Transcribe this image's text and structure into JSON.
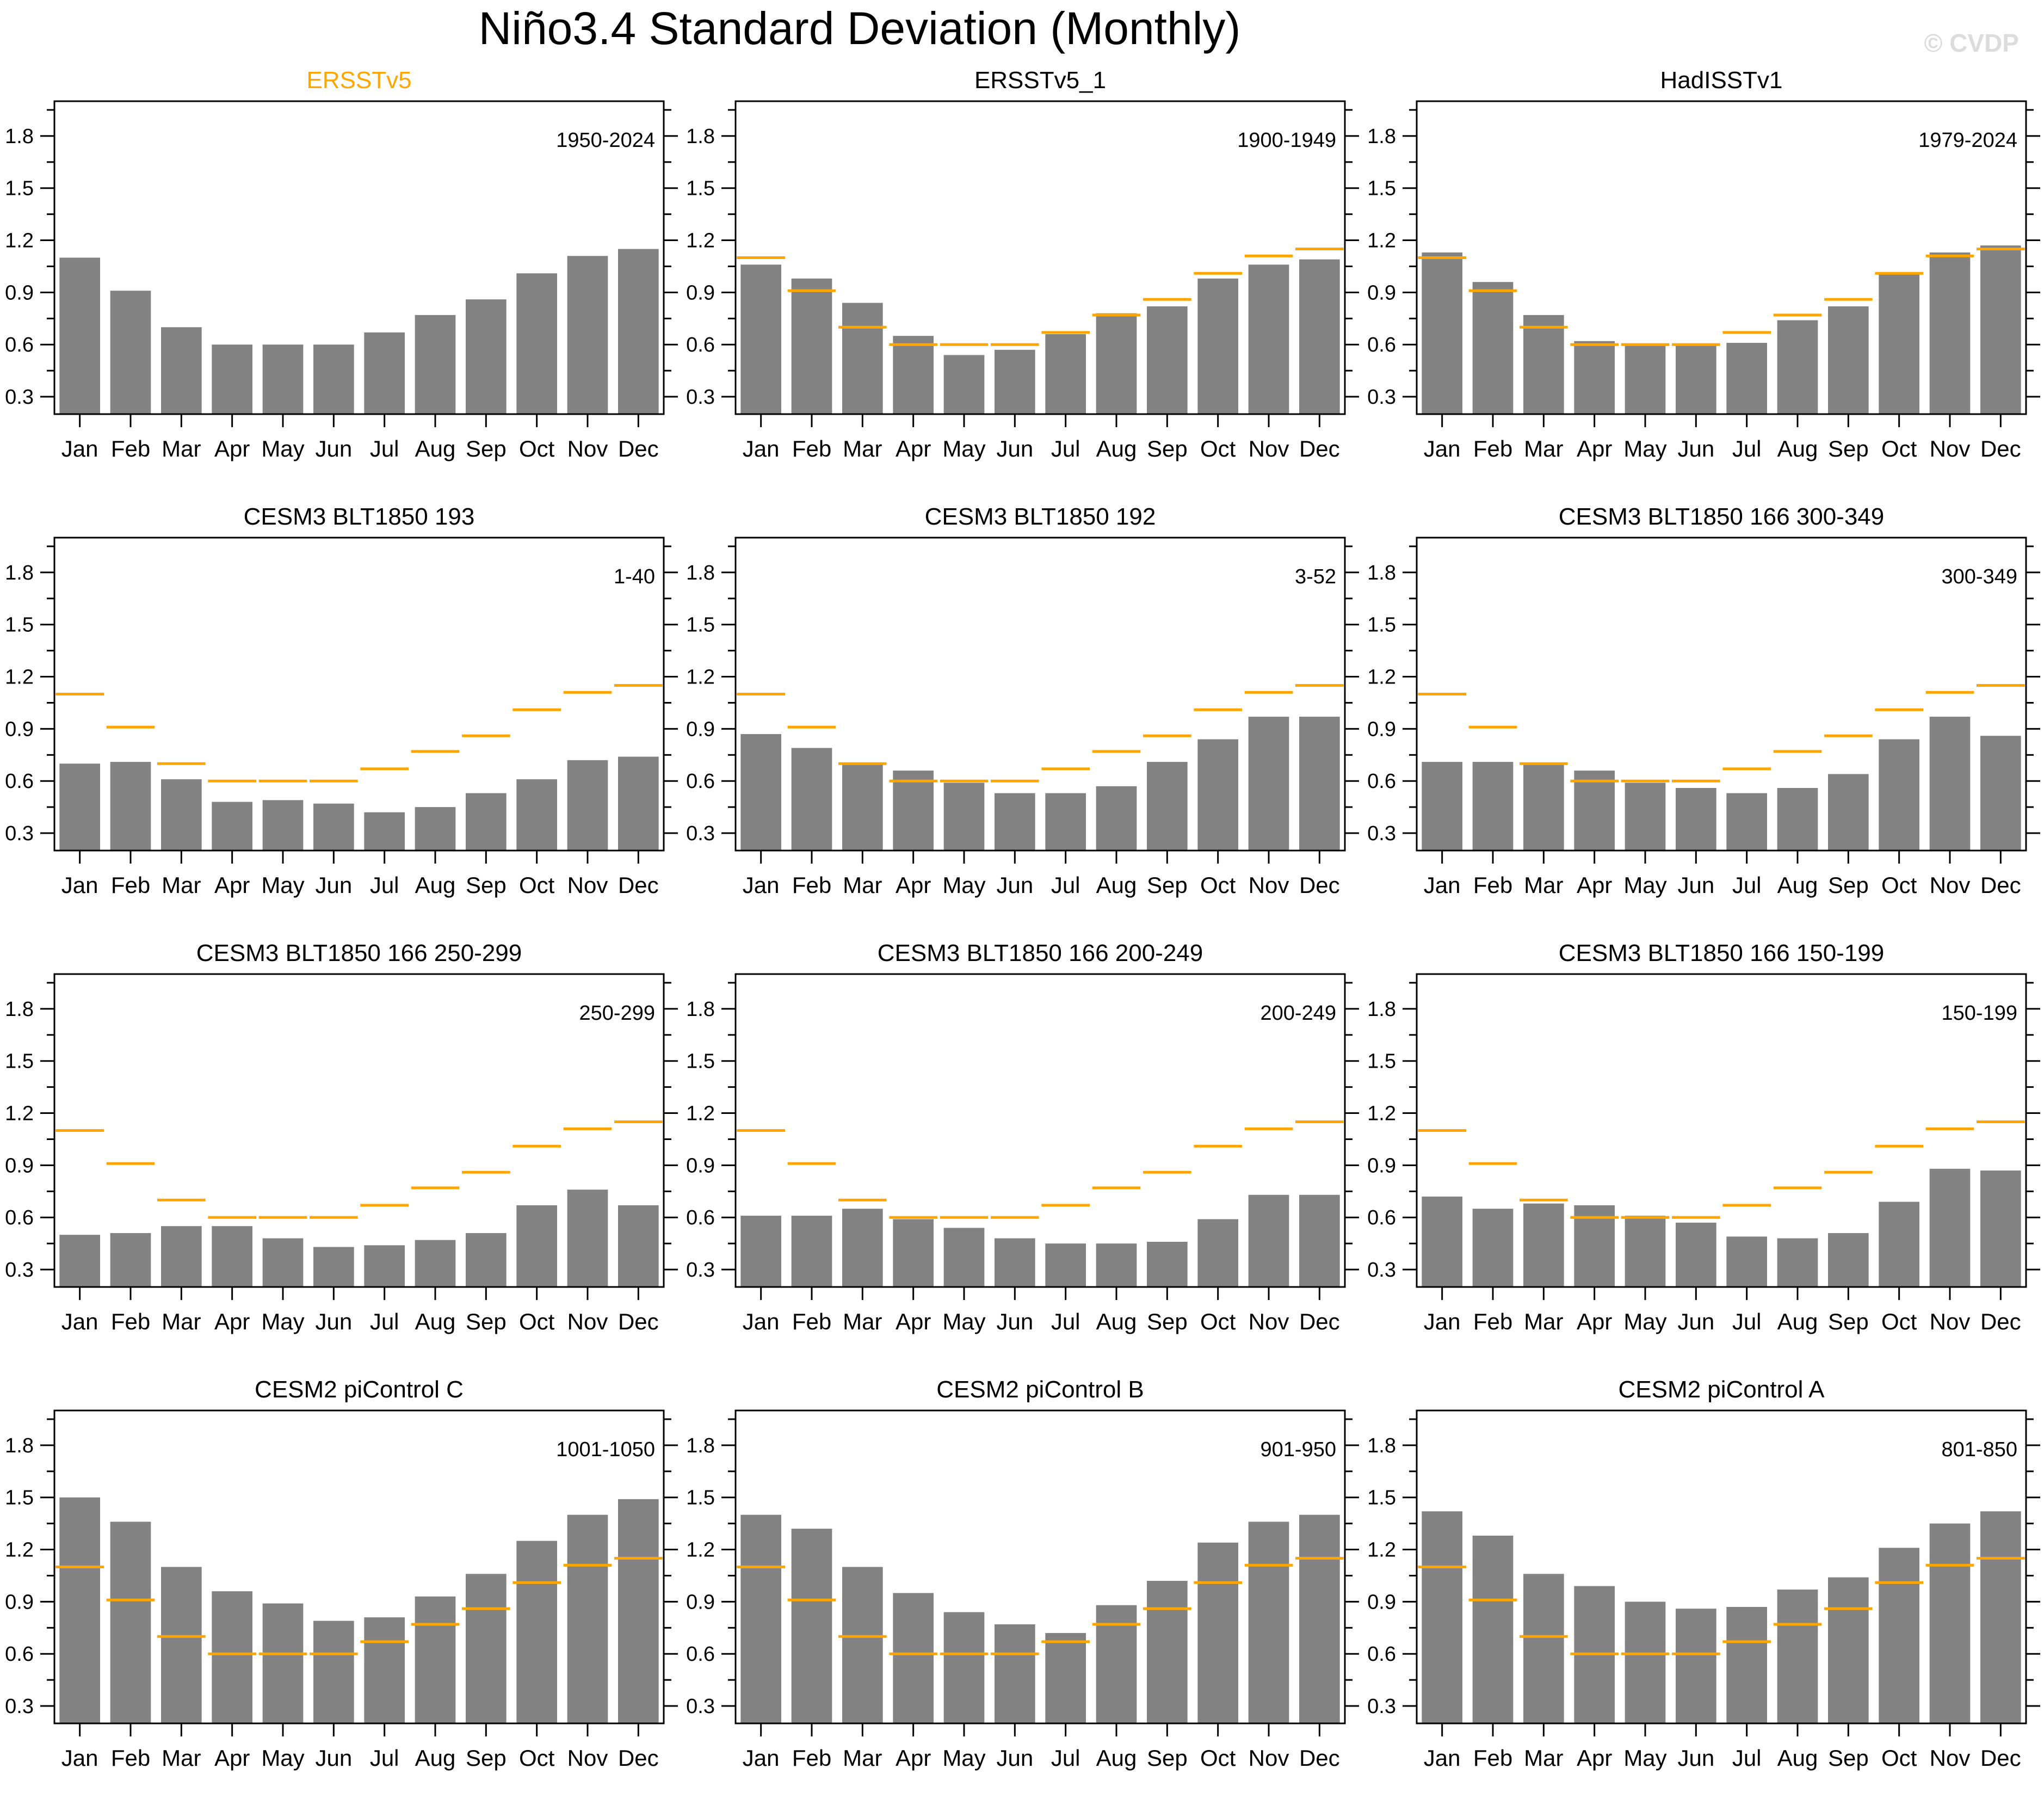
{
  "page": {
    "title": "Niño3.4 Standard Deviation (Monthly)",
    "watermark": "© CVDP"
  },
  "colors": {
    "bar": "#828282",
    "reference_line": "#FFA500",
    "highlight_title": "#FFA500",
    "default_title": "#000000",
    "axis": "#000000",
    "watermark": "#dcdcdc"
  },
  "axes": {
    "months": [
      "Jan",
      "Feb",
      "Mar",
      "Apr",
      "May",
      "Jun",
      "Jul",
      "Aug",
      "Sep",
      "Oct",
      "Nov",
      "Dec"
    ],
    "yticks": [
      0.3,
      0.6,
      0.9,
      1.2,
      1.5,
      1.8
    ],
    "yticks_minor": [
      0.45,
      0.75,
      1.05,
      1.35,
      1.65,
      1.95
    ],
    "ymin": 0.2,
    "ymax": 2.0
  },
  "reference_series": {
    "name": "ERSSTv5",
    "values": [
      1.1,
      0.91,
      0.7,
      0.6,
      0.6,
      0.6,
      0.67,
      0.77,
      0.86,
      1.01,
      1.11,
      1.15
    ]
  },
  "chart_data": [
    {
      "type": "bar",
      "title": "ERSSTv5",
      "period": "1950-2024",
      "title_style": "highlight",
      "show_reference": false,
      "values": [
        1.1,
        0.91,
        0.7,
        0.6,
        0.6,
        0.6,
        0.67,
        0.77,
        0.86,
        1.01,
        1.11,
        1.15
      ]
    },
    {
      "type": "bar",
      "title": "ERSSTv5_1",
      "period": "1900-1949",
      "title_style": "default",
      "show_reference": true,
      "values": [
        1.06,
        0.98,
        0.84,
        0.65,
        0.54,
        0.57,
        0.66,
        0.78,
        0.82,
        0.98,
        1.06,
        1.09
      ]
    },
    {
      "type": "bar",
      "title": "HadISSTv1",
      "period": "1979-2024",
      "title_style": "default",
      "show_reference": true,
      "values": [
        1.13,
        0.96,
        0.77,
        0.62,
        0.6,
        0.6,
        0.61,
        0.74,
        0.82,
        1.01,
        1.13,
        1.17
      ]
    },
    {
      "type": "bar",
      "title": "CESM3 BLT1850 193",
      "period": "1-40",
      "title_style": "default",
      "show_reference": true,
      "values": [
        0.7,
        0.71,
        0.61,
        0.48,
        0.49,
        0.47,
        0.42,
        0.45,
        0.53,
        0.61,
        0.72,
        0.74
      ]
    },
    {
      "type": "bar",
      "title": "CESM3 BLT1850 192",
      "period": "3-52",
      "title_style": "default",
      "show_reference": true,
      "values": [
        0.87,
        0.79,
        0.7,
        0.66,
        0.59,
        0.53,
        0.53,
        0.57,
        0.71,
        0.84,
        0.97,
        0.97
      ]
    },
    {
      "type": "bar",
      "title": "CESM3 BLT1850 166 300-349",
      "period": "300-349",
      "title_style": "default",
      "show_reference": true,
      "values": [
        0.71,
        0.71,
        0.7,
        0.66,
        0.59,
        0.56,
        0.53,
        0.56,
        0.64,
        0.84,
        0.97,
        0.86
      ]
    },
    {
      "type": "bar",
      "title": "CESM3 BLT1850 166 250-299",
      "period": "250-299",
      "title_style": "default",
      "show_reference": true,
      "values": [
        0.5,
        0.51,
        0.55,
        0.55,
        0.48,
        0.43,
        0.44,
        0.47,
        0.51,
        0.67,
        0.76,
        0.67
      ]
    },
    {
      "type": "bar",
      "title": "CESM3 BLT1850 166 200-249",
      "period": "200-249",
      "title_style": "default",
      "show_reference": true,
      "values": [
        0.61,
        0.61,
        0.65,
        0.59,
        0.54,
        0.48,
        0.45,
        0.45,
        0.46,
        0.59,
        0.73,
        0.73
      ]
    },
    {
      "type": "bar",
      "title": "CESM3 BLT1850 166 150-199",
      "period": "150-199",
      "title_style": "default",
      "show_reference": true,
      "values": [
        0.72,
        0.65,
        0.68,
        0.67,
        0.61,
        0.57,
        0.49,
        0.48,
        0.51,
        0.69,
        0.88,
        0.87
      ]
    },
    {
      "type": "bar",
      "title": "CESM2 piControl C",
      "period": "1001-1050",
      "title_style": "default",
      "show_reference": true,
      "values": [
        1.5,
        1.36,
        1.1,
        0.96,
        0.89,
        0.79,
        0.81,
        0.93,
        1.06,
        1.25,
        1.4,
        1.49
      ]
    },
    {
      "type": "bar",
      "title": "CESM2 piControl B",
      "period": "901-950",
      "title_style": "default",
      "show_reference": true,
      "values": [
        1.4,
        1.32,
        1.1,
        0.95,
        0.84,
        0.77,
        0.72,
        0.88,
        1.02,
        1.24,
        1.36,
        1.4
      ]
    },
    {
      "type": "bar",
      "title": "CESM2 piControl A",
      "period": "801-850",
      "title_style": "default",
      "show_reference": true,
      "values": [
        1.42,
        1.28,
        1.06,
        0.99,
        0.9,
        0.86,
        0.87,
        0.97,
        1.04,
        1.21,
        1.35,
        1.42
      ]
    }
  ]
}
